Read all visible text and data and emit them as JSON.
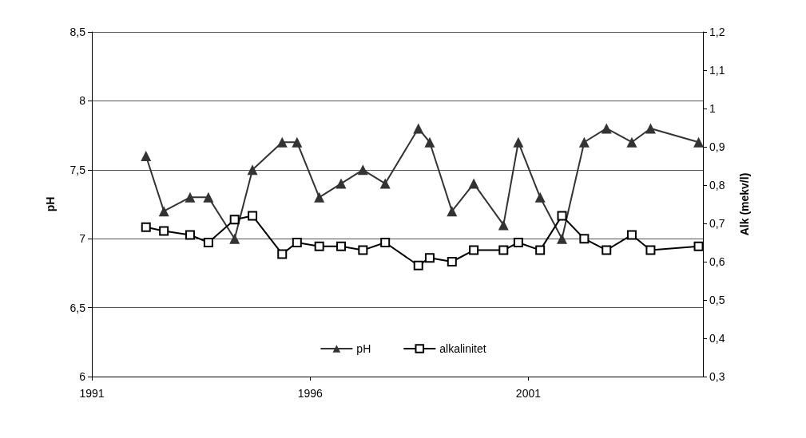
{
  "chart_data": {
    "type": "line",
    "x": [
      1992.24,
      1992.65,
      1993.25,
      1993.67,
      1994.27,
      1994.68,
      1995.36,
      1995.7,
      1996.21,
      1996.71,
      1997.21,
      1997.72,
      1998.48,
      1998.74,
      1999.25,
      1999.75,
      2000.43,
      2000.77,
      2001.27,
      2001.77,
      2002.28,
      2002.79,
      2003.37,
      2003.8,
      2004.9
    ],
    "series": [
      {
        "name": "pH",
        "color": "#333333",
        "marker": "triangle",
        "values": [
          7.6,
          7.2,
          7.3,
          7.3,
          7.0,
          7.5,
          7.7,
          7.7,
          7.3,
          7.4,
          7.5,
          7.4,
          7.8,
          7.7,
          7.2,
          7.4,
          7.1,
          7.7,
          7.3,
          7.0,
          7.7,
          7.8,
          7.7,
          7.8,
          7.7
        ]
      },
      {
        "name": "alkalinitet",
        "color": "#000000",
        "marker": "square",
        "axis": "y2",
        "values": [
          0.69,
          0.68,
          0.67,
          0.65,
          0.71,
          0.72,
          0.62,
          0.65,
          0.64,
          0.64,
          0.63,
          0.65,
          0.59,
          0.61,
          0.6,
          0.63,
          0.63,
          0.65,
          0.63,
          0.72,
          0.66,
          0.63,
          0.67,
          0.63,
          0.64
        ]
      }
    ],
    "ylabel": "pH",
    "y2label": "Alk (mekv/l)",
    "xlim": [
      1991,
      2005
    ],
    "xticks": [
      1991,
      1996,
      2001
    ],
    "ylim": [
      6,
      8.5
    ],
    "yticks": [
      6,
      {
        "value": 6.5,
        "label": "6,5"
      },
      7,
      {
        "value": 7.5,
        "label": "7,5"
      },
      8,
      {
        "value": 8.5,
        "label": "8,5"
      }
    ],
    "y2lim": [
      0.3,
      1.2
    ],
    "y2ticks": [
      {
        "value": 0.3,
        "label": "0,3"
      },
      {
        "value": 0.4,
        "label": "0,4"
      },
      {
        "value": 0.5,
        "label": "0,5"
      },
      {
        "value": 0.6,
        "label": "0,6"
      },
      {
        "value": 0.7,
        "label": "0,7"
      },
      {
        "value": 0.8,
        "label": "0,8"
      },
      {
        "value": 0.9,
        "label": "0,9"
      },
      {
        "value": 1,
        "label": "1"
      },
      {
        "value": 1.1,
        "label": "1,1"
      },
      {
        "value": 1.2,
        "label": "1,2"
      }
    ],
    "grid": "y",
    "legend": "bottom",
    "line_style": "solid"
  }
}
